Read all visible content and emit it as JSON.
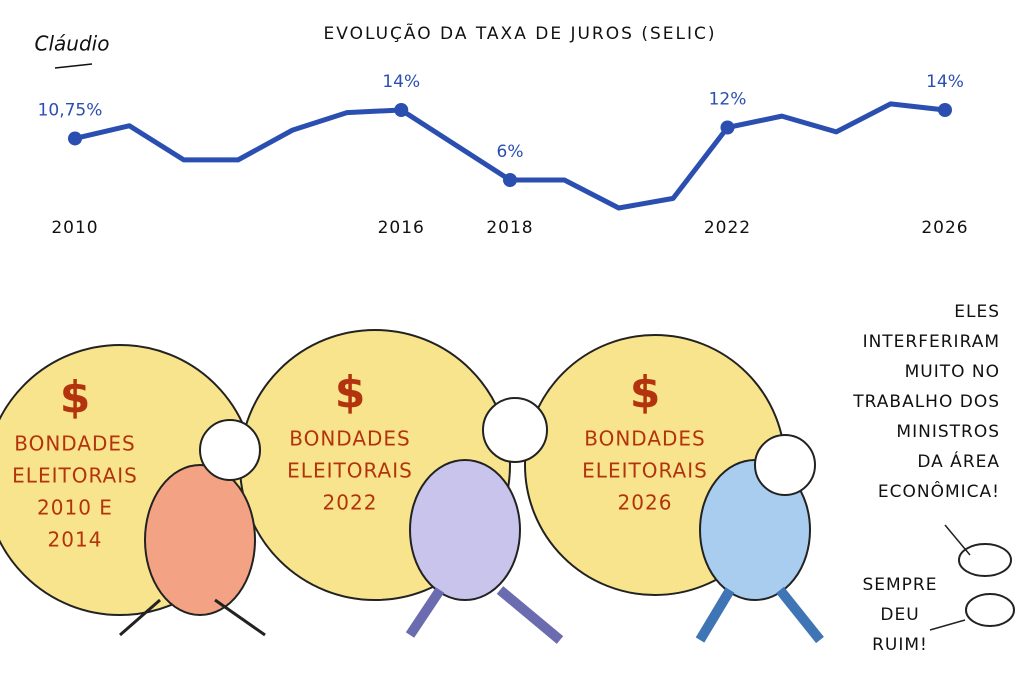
{
  "chart_data": {
    "type": "line",
    "title": "EVOLUÇÃO DA TAXA DE JUROS (SELIC)",
    "x": [
      2010,
      2011,
      2012,
      2013,
      2014,
      2015,
      2016,
      2018,
      2019,
      2020,
      2021,
      2022,
      2023,
      2024,
      2025,
      2026
    ],
    "values": [
      10.75,
      12.2,
      8.3,
      8.3,
      11.7,
      13.7,
      14,
      6,
      6,
      2.8,
      3.9,
      12,
      13.3,
      11.5,
      14.7,
      14
    ],
    "value_labels": [
      "10,75%",
      null,
      null,
      null,
      null,
      null,
      "14%",
      "6%",
      null,
      null,
      null,
      "12%",
      null,
      null,
      null,
      "14%"
    ],
    "color": "#2a4fb0",
    "xlim": [
      2010,
      2026
    ],
    "xticks": [
      2010,
      2016,
      2018,
      2022,
      2026
    ],
    "ylim": [
      2,
      16
    ]
  },
  "signature": "Cláudio",
  "bags": [
    {
      "symbol": "$",
      "lines": [
        "BONDADES",
        "ELEITORAIS",
        "2010 E",
        "2014"
      ]
    },
    {
      "symbol": "$",
      "lines": [
        "BONDADES",
        "ELEITORAIS",
        "2022"
      ]
    },
    {
      "symbol": "$",
      "lines": [
        "BONDADES",
        "ELEITORAIS",
        "2026"
      ]
    }
  ],
  "speech": [
    {
      "lines": [
        "ELES",
        "INTERFERIRAM",
        "MUITO NO",
        "TRABALHO DOS",
        "MINISTROS",
        "DA ÁREA",
        "ECONÔMICA!"
      ]
    },
    {
      "lines": [
        "SEMPRE",
        "DEU",
        "RUIM!"
      ]
    }
  ]
}
